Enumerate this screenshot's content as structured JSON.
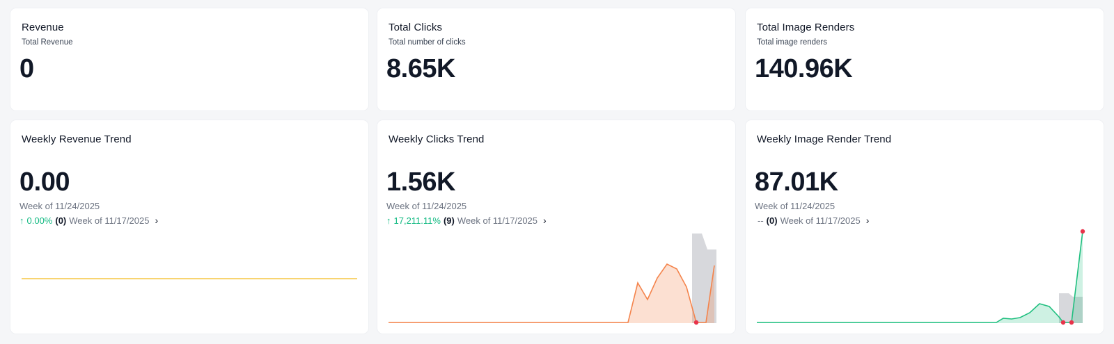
{
  "summary_cards": [
    {
      "title": "Revenue",
      "subtitle": "Total Revenue",
      "value": "0"
    },
    {
      "title": "Total Clicks",
      "subtitle": "Total number of clicks",
      "value": "8.65K"
    },
    {
      "title": "Total Image Renders",
      "subtitle": "Total image renders",
      "value": "140.96K"
    }
  ],
  "trend_cards": [
    {
      "title": "Weekly Revenue Trend",
      "value": "0.00",
      "week": "Week of 11/24/2025",
      "arrow": "↑",
      "pct": "0.00%",
      "prev_count": "(0)",
      "prev_week": "Week of 11/17/2025",
      "chevron": "›",
      "chart_color": "#f5c542"
    },
    {
      "title": "Weekly Clicks Trend",
      "value": "1.56K",
      "week": "Week of 11/24/2025",
      "arrow": "↑",
      "pct": "17,211.11%",
      "prev_count": "(9)",
      "prev_week": "Week of 11/17/2025",
      "chevron": "›",
      "chart_color": "#f4844c"
    },
    {
      "title": "Weekly Image Render Trend",
      "value": "87.01K",
      "week": "Week of 11/24/2025",
      "arrow": "",
      "pct": "--",
      "prev_count": "(0)",
      "prev_week": "Week of 11/17/2025",
      "chevron": "›",
      "chart_color": "#1fbf7f"
    }
  ],
  "colors": {
    "anomaly_marker": "#e8334a",
    "forecast_band": "#c9cbd0",
    "up": "#10b981"
  }
}
